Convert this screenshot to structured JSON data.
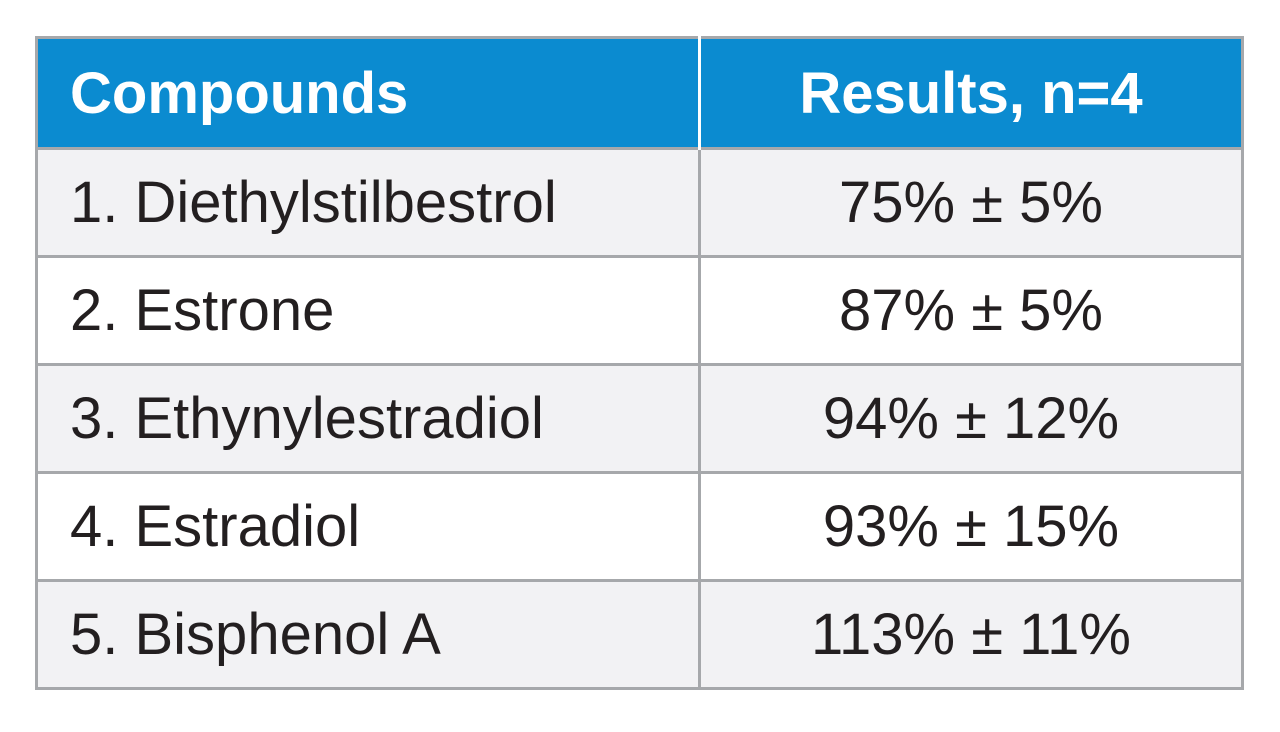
{
  "table": {
    "headers": {
      "compounds": "Compounds",
      "results": "Results, n=4"
    },
    "rows": [
      {
        "compound": "1. Diethylstilbestrol",
        "result": "75% ± 5%"
      },
      {
        "compound": "2. Estrone",
        "result": "87% ± 5%"
      },
      {
        "compound": "3. Ethynylestradiol",
        "result": "94% ± 12%"
      },
      {
        "compound": "4. Estradiol",
        "result": "93% ± 15%"
      },
      {
        "compound": "5. Bisphenol A",
        "result": "113% ± 11%"
      }
    ],
    "colors": {
      "header_background": "#0b8bd0",
      "header_text": "#ffffff",
      "row_shaded": "#f2f2f4",
      "row_plain": "#ffffff",
      "border": "#a6a8ab",
      "body_text": "#231f20"
    }
  }
}
